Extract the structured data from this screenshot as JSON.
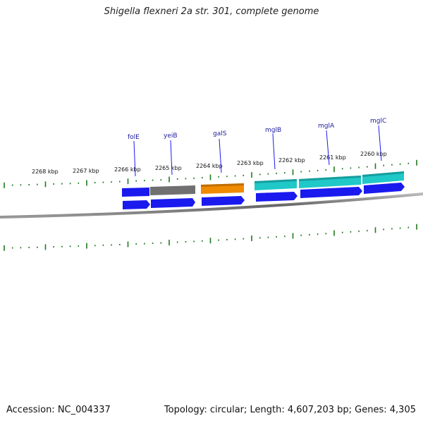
{
  "title": "Shigella flexneri 2a str. 301, complete genome",
  "footer": {
    "accession": "Accession: NC_004337",
    "topology": "Topology: circular; Length: 4,607,203 bp; Genes: 4,305"
  },
  "colors": {
    "backbone": "#777777",
    "tick": "#1e7a1e",
    "cds": "#1a1aee",
    "pseudo": "#707070",
    "galS": "#f08a00",
    "mgl": "#20c8c8",
    "label_line": "#1a1aee"
  },
  "kbp_labels": [
    "2268 kbp",
    "2267 kbp",
    "2266 kbp",
    "2265 kbp",
    "2264 kbp",
    "2263 kbp",
    "2262 kbp",
    "2261 kbp",
    "2260 kbp"
  ],
  "genes": [
    "folE",
    "yeiB",
    "galS",
    "mglB",
    "mglA",
    "mglC"
  ]
}
